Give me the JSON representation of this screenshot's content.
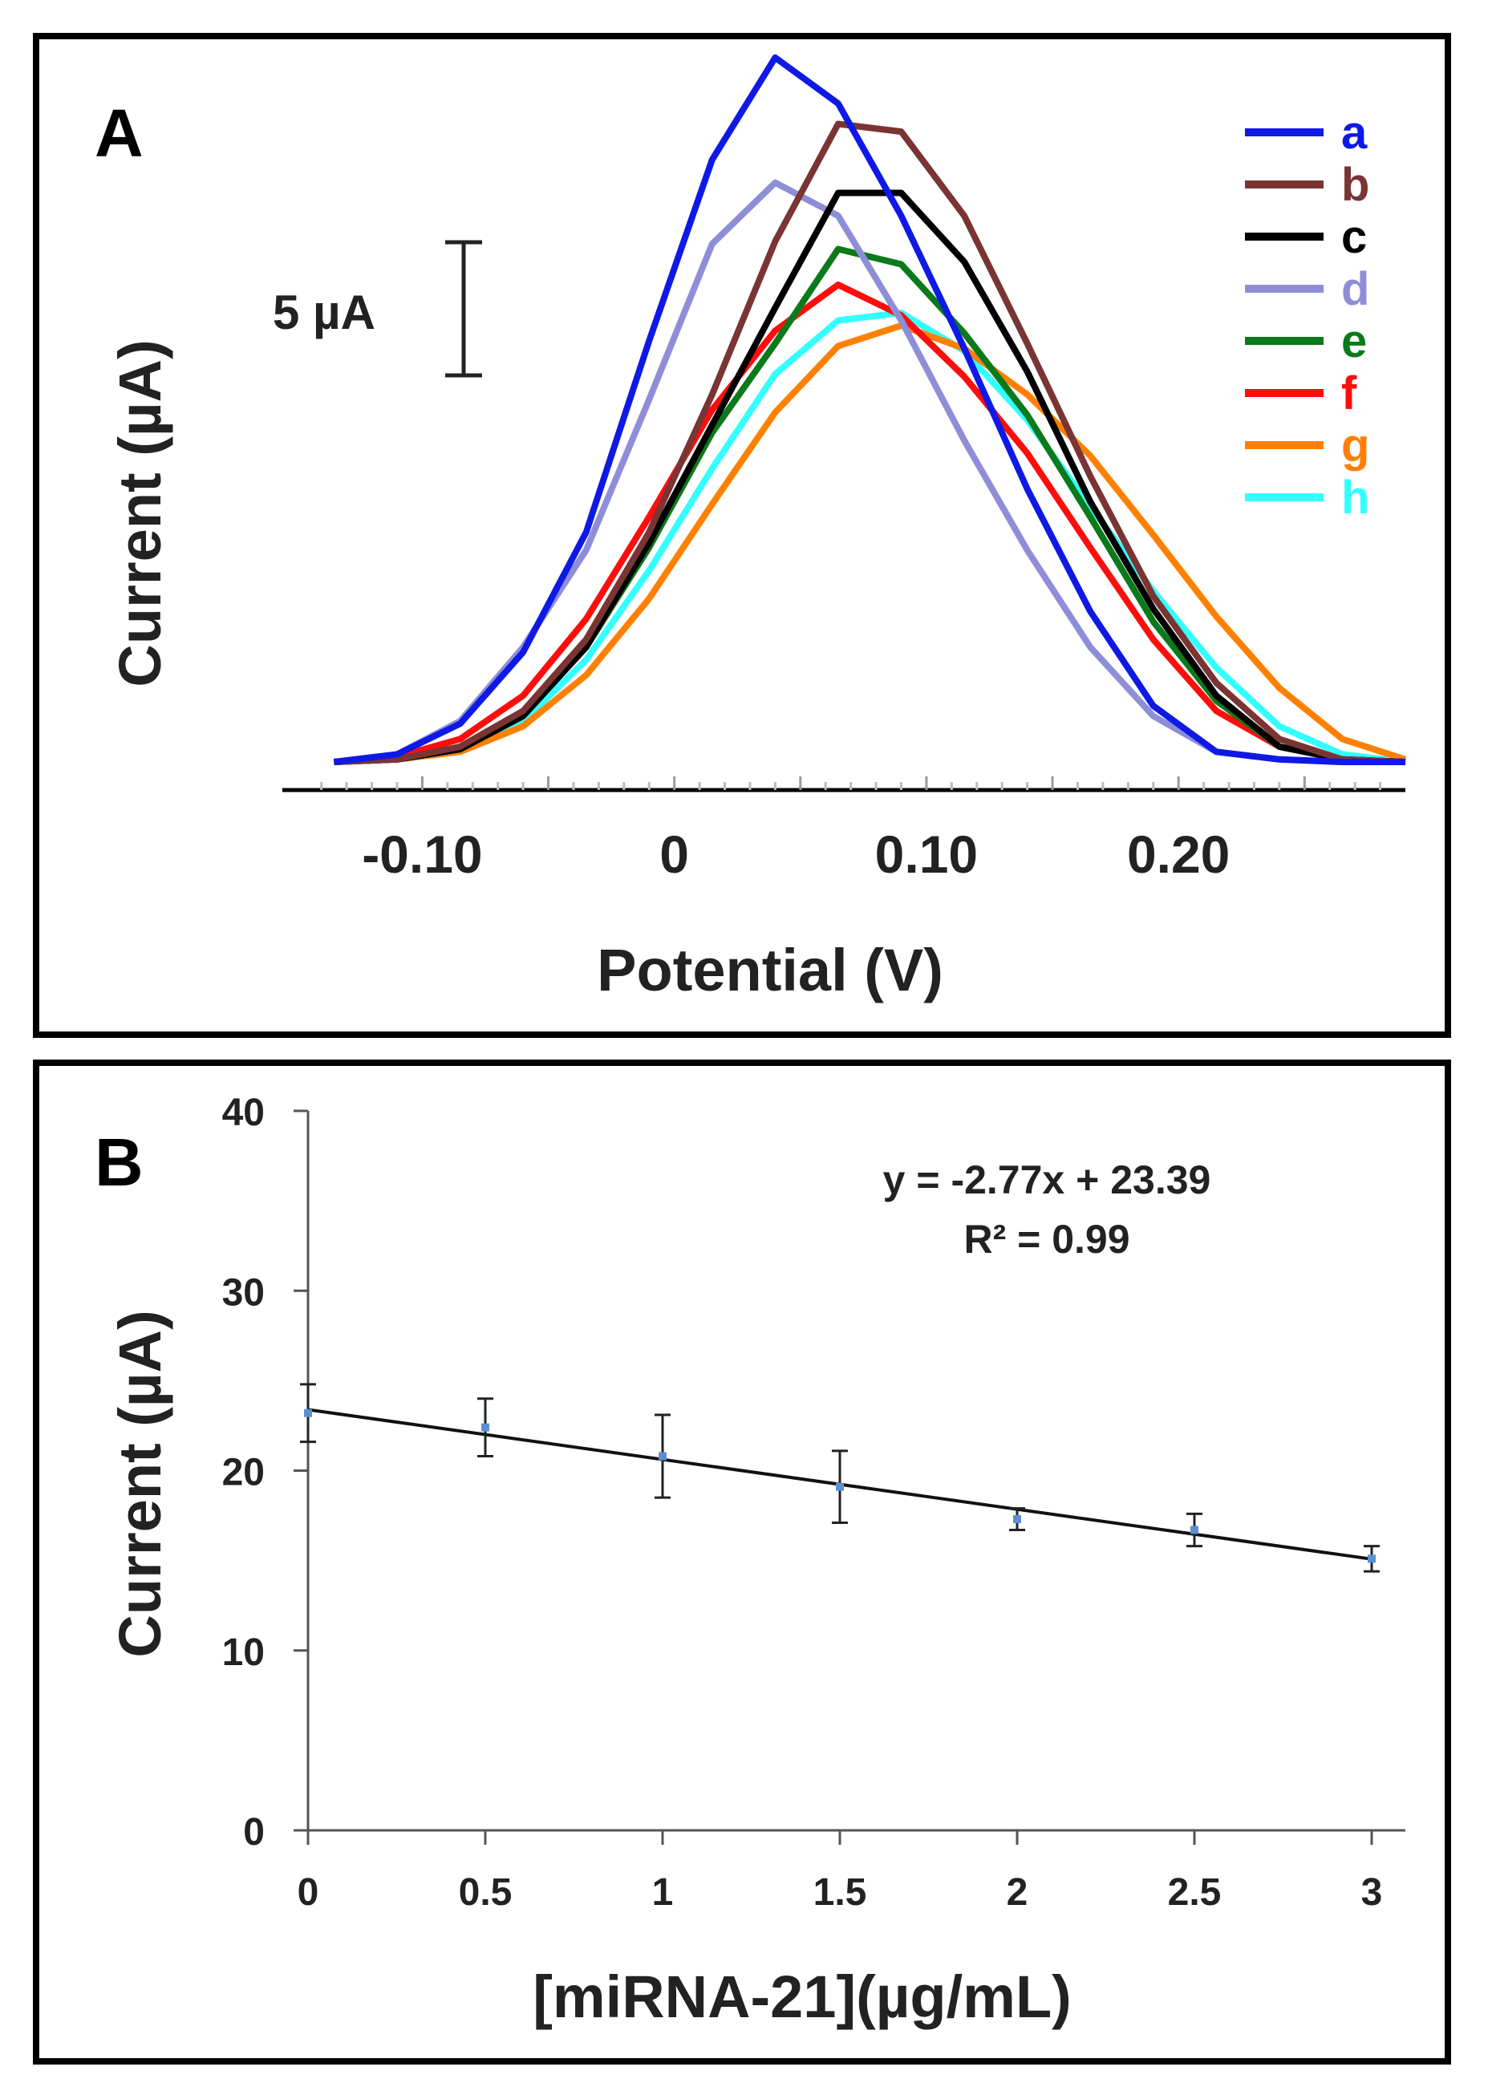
{
  "chart_data": [
    {
      "panel": "A",
      "type": "line",
      "xlabel": "Potential (V)",
      "ylabel": "Current (µA)",
      "xlim": [
        -0.145,
        0.29
      ],
      "ylim": [
        0,
        27.5
      ],
      "x_ticks": [
        -0.1,
        0,
        0.1,
        0.2
      ],
      "x_tick_labels": [
        "-0.10",
        "0",
        "0.10",
        "0.20"
      ],
      "scale_bar": {
        "label": "5 µA",
        "value": 5
      },
      "legend_position": "top-right",
      "x": [
        -0.135,
        -0.11,
        -0.085,
        -0.06,
        -0.035,
        -0.01,
        0.015,
        0.04,
        0.065,
        0.09,
        0.115,
        0.14,
        0.165,
        0.19,
        0.215,
        0.24,
        0.265,
        0.29
      ],
      "series": [
        {
          "name": "a",
          "color": "#0f19e6",
          "values": [
            0.0,
            0.3,
            1.5,
            4.3,
            9.0,
            16.5,
            23.6,
            27.6,
            25.8,
            21.4,
            16.2,
            10.7,
            5.9,
            2.2,
            0.4,
            0.1,
            0.0,
            0.0
          ]
        },
        {
          "name": "b",
          "color": "#7a3434",
          "values": [
            0.0,
            0.1,
            0.6,
            2.0,
            4.8,
            9.0,
            14.4,
            20.4,
            25.0,
            24.7,
            21.4,
            16.4,
            11.2,
            6.5,
            3.1,
            0.9,
            0.1,
            0.0
          ]
        },
        {
          "name": "c",
          "color": "#000000",
          "values": [
            0.0,
            0.1,
            0.5,
            1.8,
            4.5,
            8.6,
            13.2,
            17.8,
            22.3,
            22.3,
            19.6,
            15.3,
            10.2,
            6.0,
            2.6,
            0.6,
            0.1,
            0.0
          ]
        },
        {
          "name": "d",
          "color": "#8e8ed8",
          "values": [
            0.0,
            0.3,
            1.6,
            4.5,
            8.3,
            14.2,
            20.3,
            22.7,
            21.4,
            17.3,
            12.6,
            8.3,
            4.5,
            1.8,
            0.4,
            0.1,
            0.0,
            0.0
          ]
        },
        {
          "name": "e",
          "color": "#0a7a1a",
          "values": [
            0.0,
            0.1,
            0.5,
            1.8,
            4.5,
            8.4,
            12.9,
            16.4,
            20.1,
            19.5,
            16.8,
            13.6,
            9.6,
            5.5,
            2.4,
            0.6,
            0.1,
            0.0
          ]
        },
        {
          "name": "f",
          "color": "#ff0d0d",
          "values": [
            0.0,
            0.2,
            0.9,
            2.6,
            5.6,
            9.6,
            13.8,
            16.9,
            18.7,
            17.5,
            15.1,
            12.1,
            8.4,
            4.8,
            2.0,
            0.6,
            0.1,
            0.0
          ]
        },
        {
          "name": "g",
          "color": "#ff8000",
          "values": [
            0.0,
            0.1,
            0.4,
            1.4,
            3.4,
            6.4,
            10.1,
            13.7,
            16.3,
            17.1,
            16.2,
            14.4,
            12.0,
            8.9,
            5.7,
            2.9,
            0.9,
            0.1
          ]
        },
        {
          "name": "h",
          "color": "#33ffff",
          "values": [
            0.0,
            0.1,
            0.5,
            1.6,
            4.0,
            7.5,
            11.5,
            15.2,
            17.3,
            17.6,
            16.1,
            13.4,
            10.0,
            6.7,
            3.7,
            1.4,
            0.3,
            0.0
          ]
        }
      ]
    },
    {
      "panel": "B",
      "type": "scatter",
      "xlabel": "[miRNA-21](µg/mL)",
      "ylabel": "Current (µA)",
      "xlim": [
        0,
        3
      ],
      "ylim": [
        0,
        40
      ],
      "x_tick_labels": [
        "0",
        "0.5",
        "1",
        "1.5",
        "2",
        "2.5",
        "3"
      ],
      "y_tick_labels": [
        "0",
        "10",
        "20",
        "30",
        "40"
      ],
      "x": [
        0,
        0.5,
        1,
        1.5,
        2,
        2.5,
        3
      ],
      "y": [
        23.2,
        22.4,
        20.8,
        19.1,
        17.3,
        16.7,
        15.1
      ],
      "error": [
        1.6,
        1.6,
        2.3,
        2.0,
        0.6,
        0.9,
        0.7
      ],
      "fit": {
        "slope": -2.77,
        "intercept": 23.39
      },
      "equation": "y = -2.77x + 23.39",
      "r_squared": "R² = 0.99",
      "marker_color": "#5b8fd1"
    }
  ]
}
